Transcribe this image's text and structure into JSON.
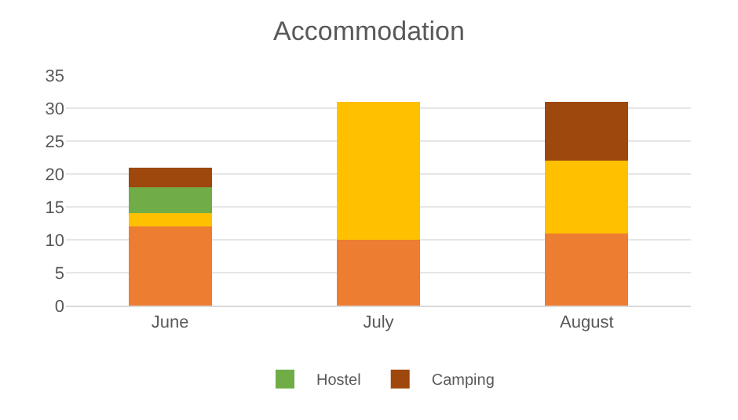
{
  "chart_data": {
    "type": "bar",
    "title": "Accommodation",
    "categories": [
      "June",
      "July",
      "August"
    ],
    "stacked": true,
    "series": [
      {
        "color": "#ed7d31",
        "values": [
          12,
          10,
          11
        ]
      },
      {
        "color": "#ffc000",
        "values": [
          2,
          21,
          11
        ]
      },
      {
        "name": "Hostel",
        "color": "#70ad47",
        "values": [
          4,
          0,
          0
        ]
      },
      {
        "name": "Camping",
        "color": "#9e480e",
        "values": [
          3,
          0,
          9
        ]
      }
    ],
    "ylim": [
      0,
      35
    ],
    "yticks": [
      0,
      5,
      10,
      15,
      20,
      25,
      30,
      35
    ],
    "grid": "y",
    "legend": "bottom"
  }
}
